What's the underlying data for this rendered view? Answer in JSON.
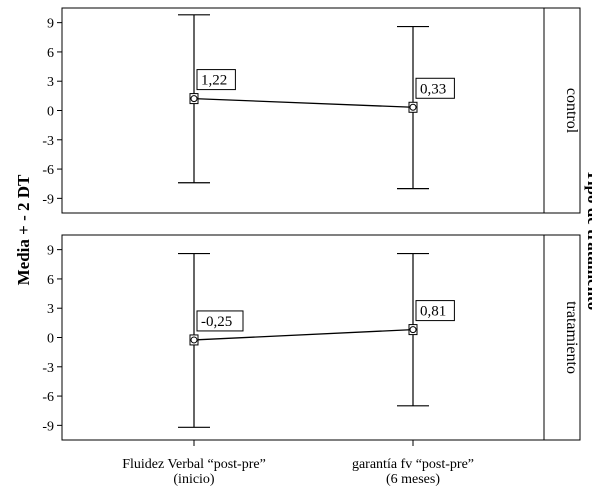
{
  "chart_data": {
    "type": "errorbar",
    "ylabel": "Media + - 2 DT",
    "facet_title": "Tipo de tratamento",
    "categories": [
      [
        "Fluidez Verbal “post-pre”",
        "(inicio)"
      ],
      [
        "garantía fv “post-pre”",
        "(6 meses)"
      ]
    ],
    "ylim": [
      -10.5,
      10.5
    ],
    "yticks": [
      9,
      6,
      3,
      0,
      -3,
      -6,
      -9
    ],
    "panels": [
      {
        "label": "control",
        "means": [
          1.22,
          0.33
        ],
        "lower": [
          -7.4,
          -8.0
        ],
        "upper": [
          9.8,
          8.6
        ],
        "mean_labels": [
          "1,22",
          "0,33"
        ]
      },
      {
        "label": "tratamiento",
        "means": [
          -0.25,
          0.81
        ],
        "lower": [
          -9.2,
          -7.0
        ],
        "upper": [
          8.6,
          8.6
        ],
        "mean_labels": [
          "-0,25",
          "0,81"
        ]
      }
    ]
  }
}
